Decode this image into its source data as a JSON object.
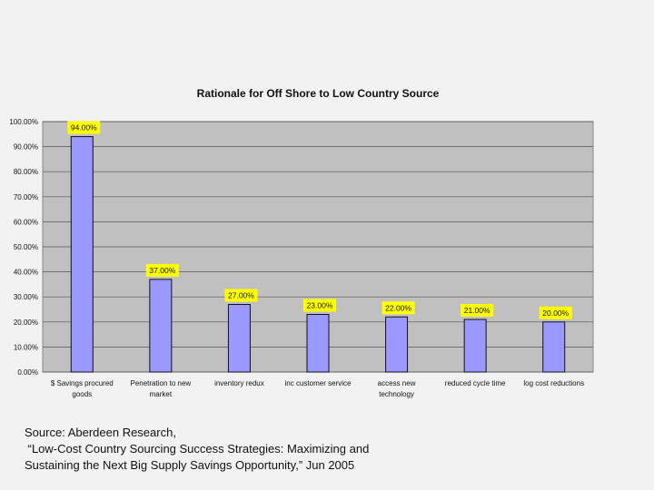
{
  "chart_data": {
    "type": "bar",
    "title": "Rationale for Off Shore to Low Country Source",
    "categories": [
      [
        "$ Savings procured",
        "goods"
      ],
      [
        "Penetration to new",
        "market"
      ],
      [
        "inventory redux"
      ],
      [
        "inc customer service"
      ],
      [
        "access new",
        "technology"
      ],
      [
        "reduced cycle time"
      ],
      [
        "log cost reductions"
      ]
    ],
    "values": [
      94.0,
      37.0,
      27.0,
      23.0,
      22.0,
      21.0,
      20.0
    ],
    "data_labels": [
      "94.00%",
      "37.00%",
      "27.00%",
      "23.00%",
      "22.00%",
      "21.00%",
      "20.00%"
    ],
    "ylim": [
      0,
      100
    ],
    "y_ticks": [
      "0.00%",
      "10.00%",
      "20.00%",
      "30.00%",
      "40.00%",
      "50.00%",
      "60.00%",
      "70.00%",
      "80.00%",
      "90.00%",
      "100.00%"
    ],
    "grid": true,
    "legend": "none",
    "colors": {
      "bar": "#9999ff",
      "bar_stroke": "#111111",
      "plot_bg": "#c0c0c0",
      "label_bg": "#ffff00"
    }
  },
  "source": {
    "line1": "Source: Aberdeen Research,",
    "line2": " “Low-Cost Country Sourcing Success Strategies: Maximizing and",
    "line3": "Sustaining the Next Big Supply Savings Opportunity,” Jun 2005"
  }
}
